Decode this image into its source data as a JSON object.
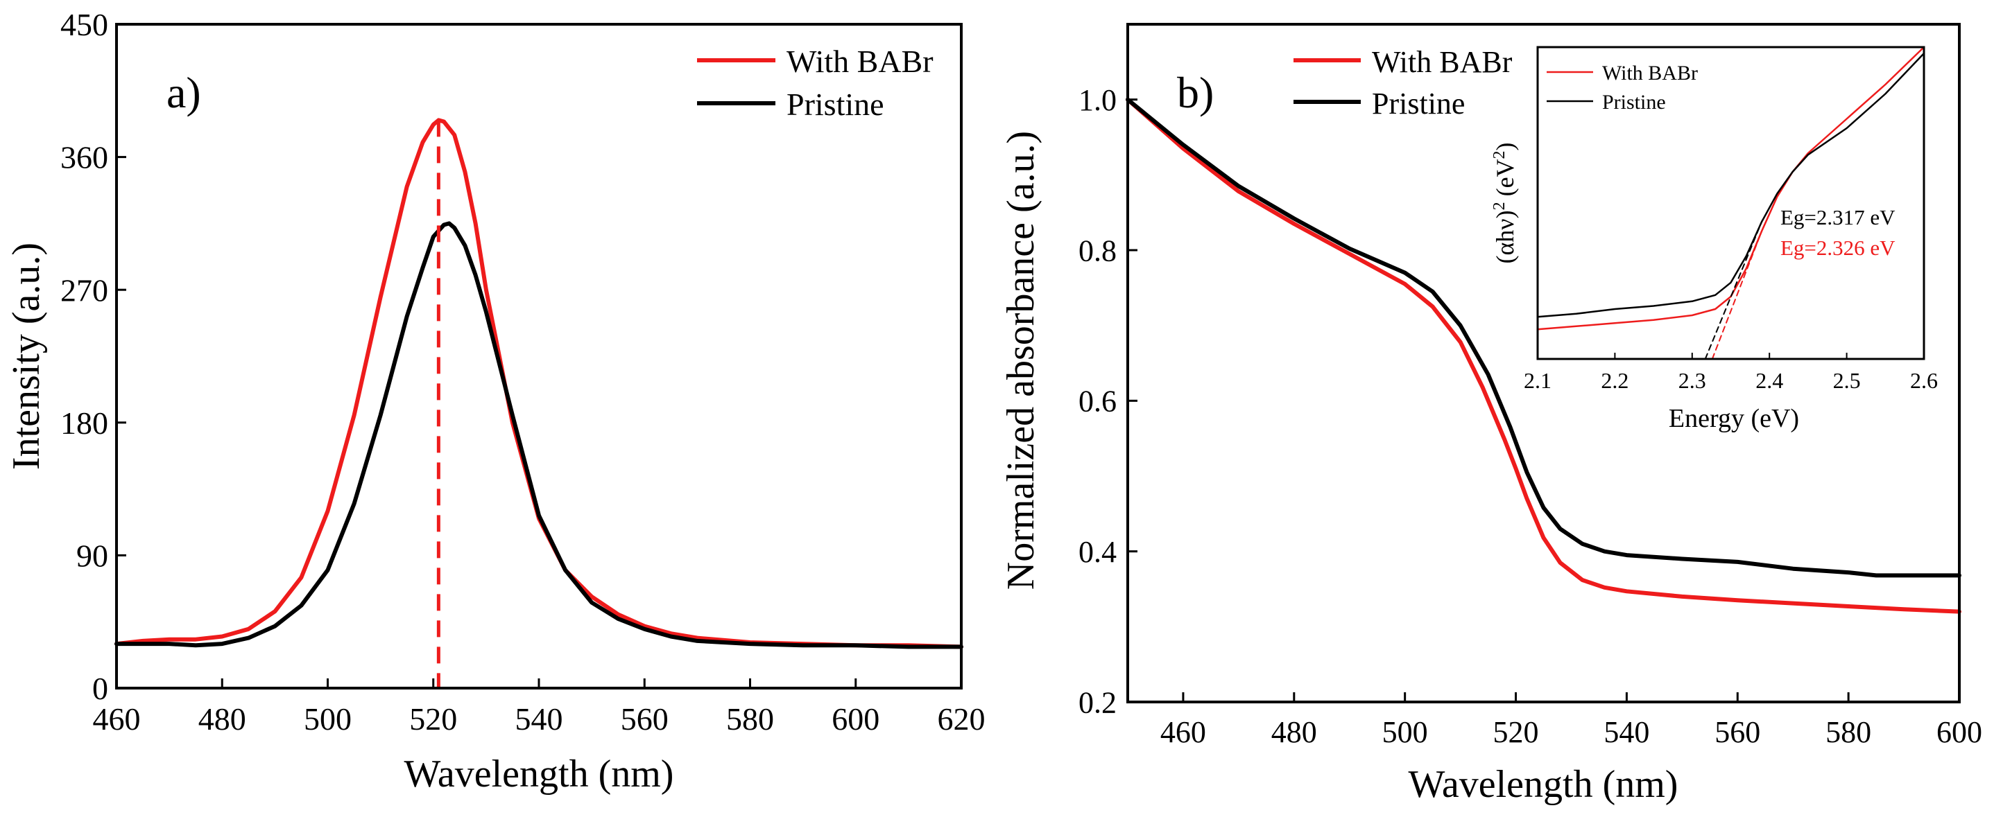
{
  "colors": {
    "red": "#ee1c1c",
    "black": "#000000"
  },
  "chart_data": [
    {
      "panel": "a)",
      "type": "line",
      "xlabel": "Wavelength (nm)",
      "ylabel": "Intensity (a.u.)",
      "xlim": [
        460,
        620
      ],
      "ylim": [
        0,
        450
      ],
      "xticks": [
        460,
        480,
        500,
        520,
        540,
        560,
        580,
        600,
        620
      ],
      "yticks": [
        0,
        90,
        180,
        270,
        360,
        450
      ],
      "peak_marker_x": 521,
      "legend": [
        "With BABr",
        "Pristine"
      ],
      "legend_position": "top-right",
      "series": [
        {
          "name": "With BABr",
          "color": "#ee1c1c",
          "x": [
            460,
            465,
            470,
            475,
            480,
            485,
            490,
            495,
            500,
            505,
            510,
            515,
            518,
            520,
            521,
            522,
            524,
            526,
            528,
            530,
            535,
            540,
            545,
            550,
            555,
            560,
            565,
            570,
            580,
            590,
            600,
            610,
            620
          ],
          "y": [
            30,
            32,
            33,
            33,
            35,
            40,
            52,
            75,
            120,
            185,
            265,
            340,
            370,
            382,
            385,
            384,
            375,
            350,
            315,
            270,
            180,
            115,
            80,
            62,
            50,
            42,
            37,
            34,
            31,
            30,
            29,
            29,
            28
          ]
        },
        {
          "name": "Pristine",
          "color": "#000000",
          "x": [
            460,
            465,
            470,
            475,
            480,
            485,
            490,
            495,
            500,
            505,
            510,
            515,
            518,
            520,
            522,
            523,
            524,
            526,
            528,
            530,
            535,
            540,
            545,
            550,
            555,
            560,
            565,
            570,
            580,
            590,
            600,
            610,
            620
          ],
          "y": [
            30,
            30,
            30,
            29,
            30,
            34,
            42,
            56,
            80,
            125,
            185,
            252,
            285,
            306,
            314,
            315,
            312,
            300,
            280,
            255,
            185,
            117,
            80,
            58,
            47,
            40,
            35,
            32,
            30,
            29,
            29,
            28,
            28
          ]
        }
      ]
    },
    {
      "panel": "b)",
      "type": "line",
      "xlabel": "Wavelength (nm)",
      "ylabel": "Normalized absorbance (a.u.)",
      "xlim": [
        450,
        600
      ],
      "ylim": [
        0.2,
        1.1
      ],
      "xticks": [
        460,
        480,
        500,
        520,
        540,
        560,
        580,
        600
      ],
      "yticks": [
        0.2,
        0.4,
        0.6,
        0.8,
        1.0
      ],
      "legend": [
        "With BABr",
        "Pristine"
      ],
      "legend_position": "top-left",
      "series": [
        {
          "name": "With BABr",
          "color": "#ee1c1c",
          "x": [
            450,
            460,
            470,
            480,
            490,
            500,
            505,
            510,
            514,
            518,
            520,
            522,
            525,
            528,
            532,
            536,
            540,
            550,
            560,
            570,
            580,
            590,
            600
          ],
          "y": [
            1.0,
            0.935,
            0.878,
            0.835,
            0.795,
            0.755,
            0.725,
            0.678,
            0.618,
            0.548,
            0.51,
            0.47,
            0.418,
            0.385,
            0.362,
            0.352,
            0.347,
            0.34,
            0.335,
            0.331,
            0.327,
            0.323,
            0.32
          ]
        },
        {
          "name": "Pristine",
          "color": "#000000",
          "x": [
            450,
            460,
            470,
            480,
            490,
            500,
            505,
            510,
            515,
            519,
            522,
            525,
            528,
            532,
            536,
            540,
            550,
            560,
            570,
            580,
            585,
            590,
            600
          ],
          "y": [
            1.0,
            0.94,
            0.885,
            0.842,
            0.802,
            0.77,
            0.745,
            0.7,
            0.635,
            0.565,
            0.505,
            0.458,
            0.43,
            0.41,
            0.4,
            0.395,
            0.39,
            0.386,
            0.377,
            0.372,
            0.368,
            0.368,
            0.368
          ]
        }
      ],
      "inset": {
        "type": "line",
        "xlabel": "Energy (eV)",
        "ylabel": "(αhν)²(eV²)",
        "ylabel_base": "(αhν)",
        "ylabel_mid": "(eV",
        "ylabel_sup": "2",
        "ylabel_close": ")",
        "xlim": [
          2.1,
          2.6
        ],
        "ylim": [
          0,
          1
        ],
        "xticks": [
          2.1,
          2.2,
          2.3,
          2.4,
          2.5,
          2.6
        ],
        "legend": [
          "With BABr",
          "Pristine"
        ],
        "annotations": [
          {
            "text": "Eg=2.317 eV",
            "color": "#000000"
          },
          {
            "text": "Eg=2.326 eV",
            "color": "#ee1c1c"
          }
        ],
        "series": [
          {
            "name": "With BABr",
            "color": "#ee1c1c",
            "x": [
              2.1,
              2.15,
              2.2,
              2.25,
              2.3,
              2.33,
              2.35,
              2.37,
              2.39,
              2.41,
              2.43,
              2.45,
              2.5,
              2.55,
              2.6
            ],
            "y": [
              0.095,
              0.105,
              0.115,
              0.125,
              0.14,
              0.16,
              0.2,
              0.29,
              0.41,
              0.52,
              0.6,
              0.66,
              0.77,
              0.88,
              1.0
            ]
          },
          {
            "name": "Pristine",
            "color": "#000000",
            "x": [
              2.1,
              2.15,
              2.2,
              2.25,
              2.3,
              2.33,
              2.35,
              2.37,
              2.39,
              2.41,
              2.43,
              2.45,
              2.5,
              2.55,
              2.6
            ],
            "y": [
              0.135,
              0.145,
              0.16,
              0.17,
              0.185,
              0.205,
              0.245,
              0.33,
              0.44,
              0.53,
              0.6,
              0.655,
              0.74,
              0.85,
              0.98
            ]
          },
          {
            "name": "Pristine fit",
            "color": "#000000",
            "dashed": true,
            "x": [
              2.317,
              2.39
            ],
            "y": [
              0.0,
              0.44
            ]
          },
          {
            "name": "With BABr fit",
            "color": "#ee1c1c",
            "dashed": true,
            "x": [
              2.326,
              2.39
            ],
            "y": [
              0.0,
              0.41
            ]
          }
        ]
      }
    }
  ]
}
